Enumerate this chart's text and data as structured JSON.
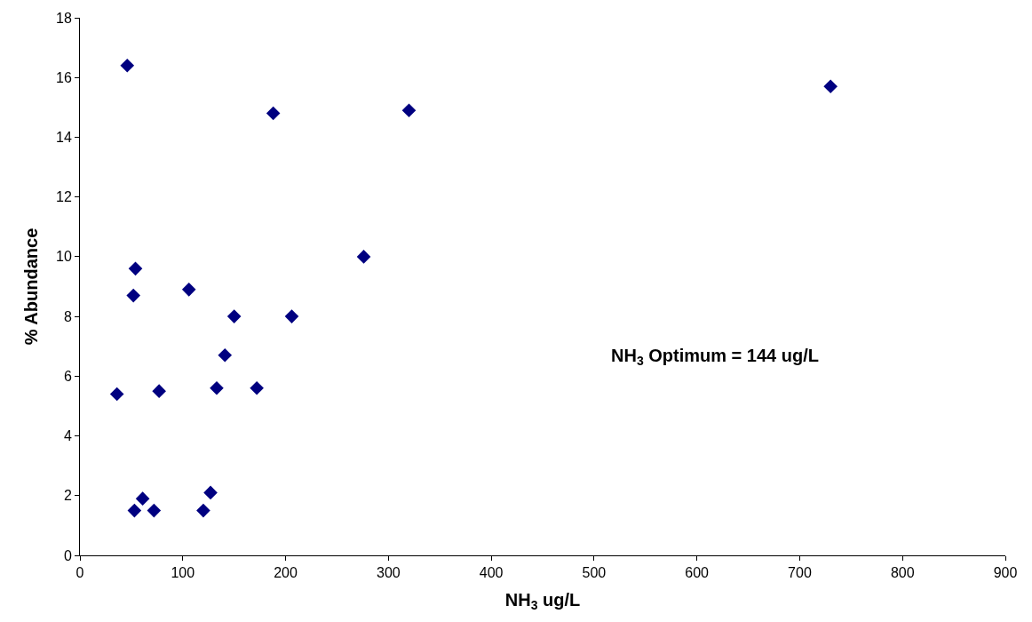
{
  "chart_data": {
    "type": "scatter",
    "xlabel": "NH$_{3}$ ug/L",
    "ylabel": "% Abundance",
    "annotations": [
      "NH$_{3}$ Optimum = 144 ug/L"
    ],
    "x": [
      46,
      730,
      188,
      320,
      276,
      54,
      52,
      106,
      150,
      206,
      141,
      36,
      77,
      133,
      172,
      61,
      53,
      72,
      120,
      127
    ],
    "series": [
      {
        "color": "#000080",
        "values": [
          16.4,
          15.7,
          14.8,
          14.9,
          10.0,
          9.6,
          8.7,
          8.9,
          8.0,
          8.0,
          6.7,
          5.4,
          5.5,
          5.6,
          5.6,
          1.9,
          1.5,
          1.5,
          1.5,
          2.1
        ]
      }
    ],
    "xlim": [
      0,
      900
    ],
    "xticks": [
      0,
      100,
      200,
      300,
      400,
      500,
      600,
      700,
      800,
      900
    ],
    "ylim": [
      0,
      18
    ],
    "yticks": [
      0,
      2,
      4,
      6,
      8,
      10,
      12,
      14,
      16,
      18
    ],
    "marker": "diamond"
  }
}
